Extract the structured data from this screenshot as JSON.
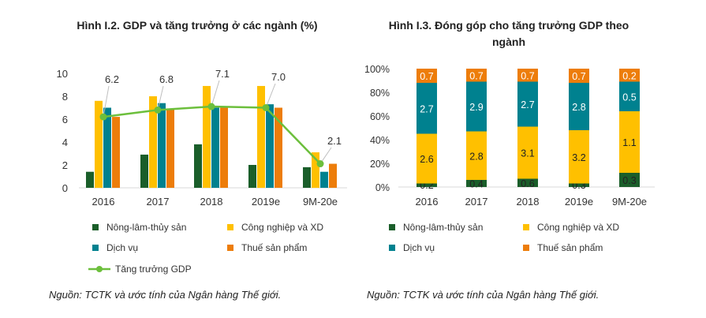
{
  "colors": {
    "agri": "#1a5e2a",
    "industry": "#ffc000",
    "services": "#00818f",
    "tax": "#ed7d0a",
    "gdp": "#6cbf3c"
  },
  "chart_data": [
    {
      "type": "bar",
      "title": "Hình I.2. GDP và tăng trưởng ở các ngành (%)",
      "categories": [
        "2016",
        "2017",
        "2018",
        "2019e",
        "9M-20e"
      ],
      "ylim": [
        0,
        10
      ],
      "yticks": [
        "0",
        "2",
        "4",
        "6",
        "8",
        "10"
      ],
      "series": [
        {
          "name": "Nông-lâm-thủy sản",
          "values": [
            1.4,
            2.9,
            3.8,
            2.0,
            1.8
          ]
        },
        {
          "name": "Công nghiệp và XD",
          "values": [
            7.6,
            8.0,
            8.9,
            8.9,
            3.1
          ]
        },
        {
          "name": "Dịch vụ",
          "values": [
            7.0,
            7.4,
            7.0,
            7.3,
            1.4
          ]
        },
        {
          "name": "Thuế sản phẩm",
          "values": [
            6.2,
            6.9,
            7.1,
            7.0,
            2.1
          ]
        }
      ],
      "line": {
        "name": "Tăng trưởng GDP",
        "values": [
          6.2,
          6.8,
          7.1,
          7.0,
          2.1
        ],
        "labels": [
          "6.2",
          "6.8",
          "7.1",
          "7.0",
          "2.1"
        ]
      },
      "source": "Nguồn: TCTK và ước tính của Ngân hàng Thế giới."
    },
    {
      "type": "bar",
      "stacked": true,
      "title": "Hình I.3. Đóng góp cho tăng trưởng GDP theo ngành",
      "categories": [
        "2016",
        "2017",
        "2018",
        "2019e",
        "9M-20e"
      ],
      "ylim": [
        0,
        100
      ],
      "yticks": [
        "0%",
        "20%",
        "40%",
        "60%",
        "80%",
        "100%"
      ],
      "series": [
        {
          "name": "Nông-lâm-thủy sản",
          "share": [
            3,
            6,
            7,
            3,
            12
          ],
          "labels": [
            "0.2",
            "0.4",
            "0.6",
            "0.3",
            "0.3"
          ]
        },
        {
          "name": "Công nghiệp và XD",
          "share": [
            42,
            41,
            44,
            45,
            52
          ],
          "labels": [
            "2.6",
            "2.8",
            "3.1",
            "3.2",
            "1.1"
          ]
        },
        {
          "name": "Dịch vụ",
          "share": [
            43,
            42,
            38,
            40,
            25
          ],
          "labels": [
            "2.7",
            "2.9",
            "2.7",
            "2.8",
            "0.5"
          ]
        },
        {
          "name": "Thuế sản phẩm",
          "share": [
            12,
            11,
            11,
            12,
            11
          ],
          "labels": [
            "0.7",
            "0.7",
            "0.7",
            "0.7",
            "0.2"
          ]
        }
      ],
      "source": "Nguồn: TCTK và ước tính của Ngân hàng Thế giới."
    }
  ]
}
